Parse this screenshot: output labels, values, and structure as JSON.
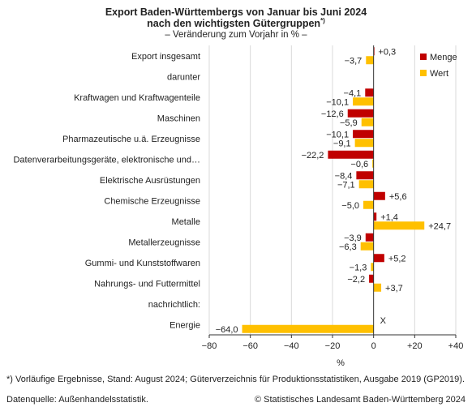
{
  "title_line1": "Export Baden-Württembergs von Januar bis Juni 2024",
  "title_line2": "nach den wichtigsten Gütergruppen",
  "title_sup": "*)",
  "subtitle": "– Veränderung zum Vorjahr in % –",
  "footnote": "*) Vorläufige Ergebnisse, Stand: August 2024; Güterverzeichnis für Produktionsstatistiken, Ausgabe 2019 (GP2019).",
  "source": "Datenquelle: Außenhandelsstatistik.",
  "copyright": "© Statistisches Landesamt Baden-Württemberg 2024",
  "colors": {
    "menge": "#c00000",
    "wert": "#ffc000",
    "grid": "#d9d9d9",
    "axis": "#333333"
  },
  "chart_data": {
    "type": "bar",
    "orientation": "horizontal",
    "xlabel": "%",
    "xlim": [
      -80,
      40
    ],
    "xticks": [
      -80,
      -60,
      -40,
      -20,
      0,
      20,
      40
    ],
    "xtick_labels": [
      "−80",
      "−60",
      "−40",
      "−20",
      "0",
      "+20",
      "+40"
    ],
    "grid": true,
    "legend_position": "top-right",
    "categories": [
      "Export insgesamt",
      "darunter",
      "Kraftwagen und Kraftwagenteile",
      "Maschinen",
      "Pharmazeutische u.ä. Erzeugnisse",
      "Datenverarbeitungsgeräte, elektronische und…",
      "Elektrische Ausrüstungen",
      "Chemische Erzeugnisse",
      "Metalle",
      "Metallerzeugnisse",
      "Gummi- und Kunststoffwaren",
      "Nahrungs- und Futtermittel",
      "nachrichtlich:",
      "Energie"
    ],
    "series": [
      {
        "name": "Menge",
        "values": [
          0.3,
          null,
          -4.1,
          -12.6,
          -10.1,
          -22.2,
          -8.4,
          5.6,
          1.4,
          -3.9,
          5.2,
          -2.2,
          null,
          null
        ],
        "labels": [
          "+0,3",
          "",
          "−4,1",
          "−12,6",
          "−10,1",
          "−22,2",
          "−8,4",
          "+5,6",
          "+1,4",
          "−3,9",
          "+5,2",
          "−2,2",
          "",
          "X"
        ]
      },
      {
        "name": "Wert",
        "values": [
          -3.7,
          null,
          -10.1,
          -5.9,
          -9.1,
          -0.6,
          -7.1,
          -5.0,
          24.7,
          -6.3,
          -1.3,
          3.7,
          null,
          -64.0
        ],
        "labels": [
          "−3,7",
          "",
          "−10,1",
          "−5,9",
          "−9,1",
          "−0,6",
          "−7,1",
          "−5,0",
          "+24,7",
          "−6,3",
          "−1,3",
          "+3,7",
          "",
          "−64,0"
        ]
      }
    ]
  }
}
